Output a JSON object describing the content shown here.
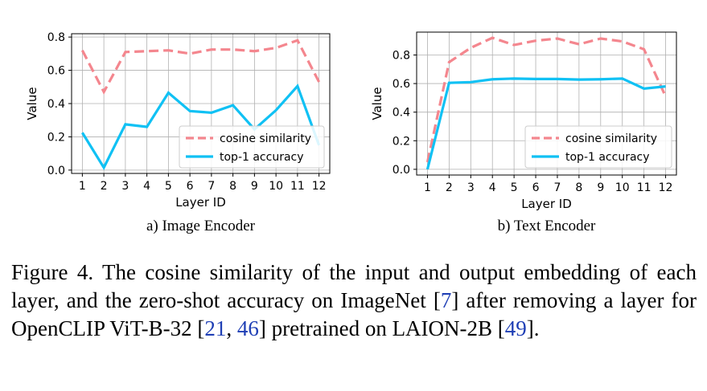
{
  "chart_data": [
    {
      "type": "line",
      "subtitle": "a) Image Encoder",
      "xlabel": "Layer ID",
      "ylabel": "Value",
      "x": [
        1,
        2,
        3,
        4,
        5,
        6,
        7,
        8,
        9,
        10,
        11,
        12
      ],
      "xlim": [
        0.5,
        12.5
      ],
      "ylim": [
        -0.02,
        0.82
      ],
      "yticks": [
        "0.0",
        "0.2",
        "0.4",
        "0.6",
        "0.8"
      ],
      "ytick_values": [
        0,
        0.2,
        0.4,
        0.6,
        0.8
      ],
      "grid": true,
      "legend_position": "lower-right",
      "series": [
        {
          "name": "cosine similarity",
          "color": "#f4868e",
          "style": "dashed",
          "values": [
            0.72,
            0.47,
            0.71,
            0.715,
            0.72,
            0.7,
            0.725,
            0.725,
            0.715,
            0.735,
            0.78,
            0.53
          ]
        },
        {
          "name": "top-1 accuracy",
          "color": "#10c1f4",
          "style": "solid",
          "values": [
            0.225,
            0.015,
            0.275,
            0.26,
            0.465,
            0.355,
            0.345,
            0.39,
            0.245,
            0.36,
            0.505,
            0.15
          ]
        }
      ]
    },
    {
      "type": "line",
      "subtitle": "b) Text Encoder",
      "xlabel": "Layer ID",
      "ylabel": "Value",
      "x": [
        1,
        2,
        3,
        4,
        5,
        6,
        7,
        8,
        9,
        10,
        11,
        12
      ],
      "xlim": [
        0.5,
        12.5
      ],
      "ylim": [
        -0.04,
        0.96
      ],
      "yticks": [
        "0.0",
        "0.2",
        "0.4",
        "0.6",
        "0.8"
      ],
      "ytick_values": [
        0,
        0.2,
        0.4,
        0.6,
        0.8
      ],
      "grid": true,
      "legend_position": "lower-right",
      "series": [
        {
          "name": "cosine similarity",
          "color": "#f4868e",
          "style": "dashed",
          "values": [
            0.05,
            0.75,
            0.85,
            0.92,
            0.87,
            0.9,
            0.915,
            0.875,
            0.915,
            0.895,
            0.84,
            0.51
          ]
        },
        {
          "name": "top-1 accuracy",
          "color": "#10c1f4",
          "style": "solid",
          "values": [
            0.0,
            0.605,
            0.61,
            0.63,
            0.635,
            0.632,
            0.632,
            0.628,
            0.63,
            0.635,
            0.565,
            0.58
          ]
        }
      ]
    }
  ],
  "caption": {
    "text_1": "Figure 4. The cosine similarity of the input and output embedding of each layer, and the zero-shot accuracy on ImageNet [",
    "ref_1": "7",
    "text_2": "] after removing a layer for OpenCLIP ViT-B-32 [",
    "ref_2": "21",
    "text_3": ", ",
    "ref_3": "46",
    "text_4": "] pretrained on LAION-2B [",
    "ref_4": "49",
    "text_5": "]."
  }
}
